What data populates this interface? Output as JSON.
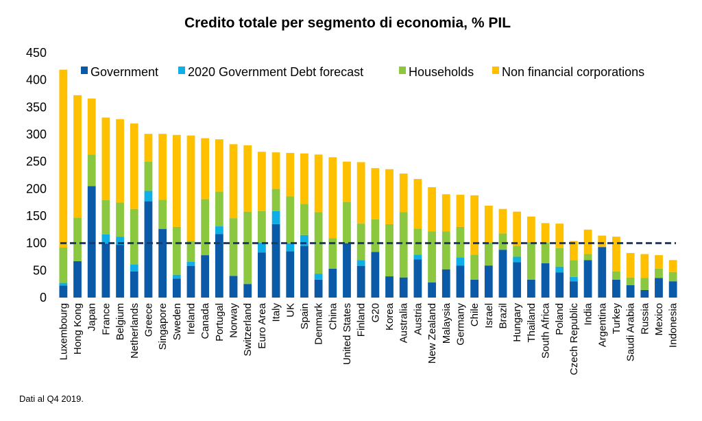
{
  "chart_data": {
    "type": "bar",
    "stacked": true,
    "title": "Credito totale per segmento di economia, % PIL",
    "note": "Dati al Q4 2019.",
    "ylim": [
      0,
      450
    ],
    "yticks": [
      0,
      50,
      100,
      150,
      200,
      250,
      300,
      350,
      400,
      450
    ],
    "reference_line": 100,
    "legend_position": "top",
    "colors": {
      "Government": "#0b5aa8",
      "2020 Government Debt forecast": "#10aee6",
      "Households": "#8cc83f",
      "Non financial corporations": "#ffc000",
      "reference_line": "#1f3864"
    },
    "categories": [
      "Luxembourg",
      "Hong Kong",
      "Japan",
      "France",
      "Belgium",
      "Netherlands",
      "Greece",
      "Singapore",
      "Sweden",
      "Ireland",
      "Canada",
      "Portugal",
      "Norway",
      "Switzerland",
      "Euro Area",
      "Italy",
      "UK",
      "Spain",
      "Denmark",
      "China",
      "United States",
      "Finland",
      "G20",
      "Korea",
      "Australia",
      "Austria",
      "New Zealand",
      "Malaysia",
      "Germany",
      "Chile",
      "Israel",
      "Brazil",
      "Hungary",
      "Thailand",
      "South Africa",
      "Poland",
      "Czech Republic",
      "India",
      "Argentina",
      "Turkey",
      "Saudi Arabia",
      "Russia",
      "Mexico",
      "Indonesia"
    ],
    "series": [
      {
        "name": "Government",
        "values": [
          22,
          67,
          205,
          99,
          97,
          48,
          177,
          126,
          35,
          58,
          78,
          117,
          40,
          25,
          83,
          135,
          85,
          95,
          33,
          53,
          100,
          58,
          84,
          39,
          37,
          70,
          28,
          52,
          59,
          33,
          59,
          88,
          65,
          33,
          63,
          46,
          30,
          69,
          93,
          33,
          23,
          14,
          36,
          30
        ]
      },
      {
        "name": "2020 Government Debt forecast",
        "values": [
          5,
          0,
          0,
          17,
          15,
          13,
          19,
          0,
          7,
          8,
          0,
          14,
          0,
          0,
          18,
          24,
          15,
          20,
          11,
          0,
          0,
          11,
          0,
          0,
          0,
          9,
          0,
          0,
          15,
          0,
          0,
          0,
          10,
          0,
          0,
          11,
          8,
          0,
          0,
          0,
          0,
          0,
          0,
          0
        ]
      },
      {
        "name": "Households",
        "values": [
          65,
          80,
          58,
          63,
          63,
          102,
          54,
          54,
          88,
          38,
          103,
          64,
          106,
          133,
          58,
          41,
          86,
          57,
          113,
          56,
          76,
          67,
          60,
          96,
          120,
          48,
          94,
          70,
          56,
          46,
          42,
          30,
          20,
          69,
          38,
          34,
          31,
          11,
          0,
          15,
          14,
          22,
          17,
          17
        ]
      },
      {
        "name": "Non financial corporations",
        "values": [
          327,
          225,
          103,
          152,
          153,
          157,
          51,
          121,
          169,
          194,
          112,
          96,
          136,
          122,
          109,
          67,
          80,
          93,
          106,
          149,
          74,
          113,
          94,
          101,
          71,
          91,
          81,
          68,
          59,
          109,
          68,
          45,
          63,
          47,
          36,
          45,
          35,
          45,
          21,
          64,
          45,
          44,
          25,
          22
        ]
      }
    ]
  }
}
